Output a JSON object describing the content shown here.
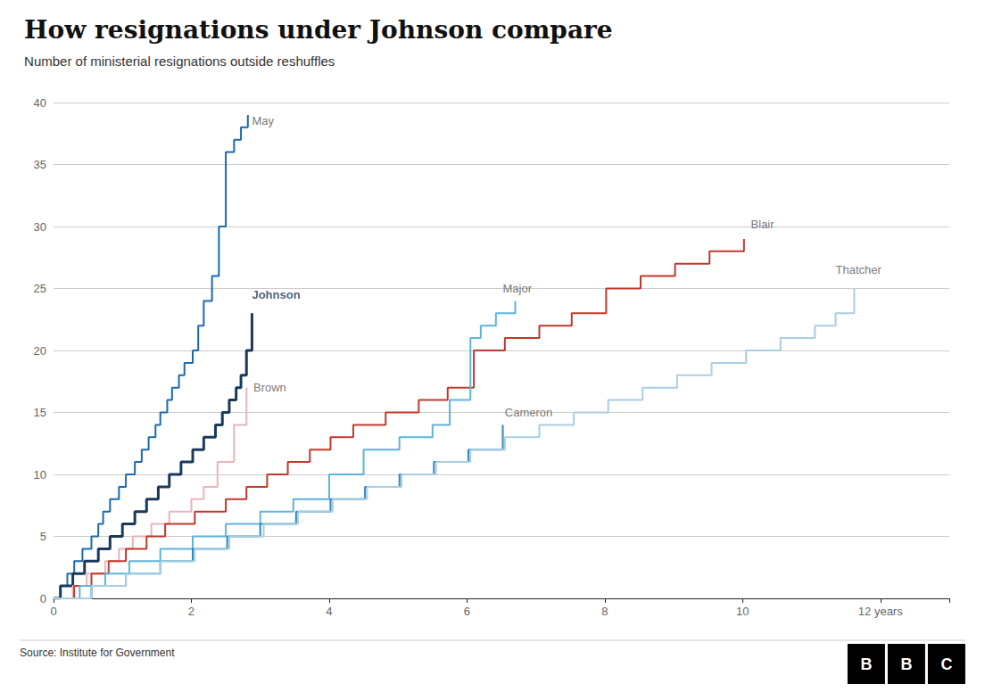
{
  "chart_data": {
    "type": "step",
    "title": "How resignations under Johnson compare",
    "subtitle": "Number of ministerial resignations outside reshuffles",
    "source": "Source: Institute for Government",
    "logo": "BBC",
    "xlim": [
      0,
      13.0
    ],
    "ylim": [
      0,
      40
    ],
    "xticks": [
      0,
      2,
      4,
      6,
      8,
      10,
      {
        "value": 12,
        "label": "12 years"
      }
    ],
    "yticks": [
      0,
      5,
      10,
      15,
      20,
      25,
      30,
      35,
      40
    ],
    "grid": true,
    "series": [
      {
        "name": "May",
        "color": "#1a6ab0",
        "x": [
          0,
          0.1,
          0.2,
          0.3,
          0.42,
          0.55,
          0.65,
          0.72,
          0.82,
          0.95,
          1.05,
          1.18,
          1.28,
          1.38,
          1.48,
          1.55,
          1.65,
          1.72,
          1.82,
          1.9,
          2.02,
          2.1,
          2.18,
          2.3,
          2.4,
          2.5,
          2.62,
          2.72,
          2.82
        ],
        "values": [
          0,
          1,
          2,
          3,
          4,
          5,
          6,
          7,
          8,
          9,
          10,
          11,
          12,
          13,
          14,
          15,
          16,
          17,
          18,
          19,
          20,
          22,
          24,
          26,
          30,
          36,
          37,
          38,
          39
        ]
      },
      {
        "name": "Johnson",
        "color": "#1a3a5c",
        "x": [
          0,
          0.1,
          0.28,
          0.45,
          0.65,
          0.82,
          1.0,
          1.18,
          1.35,
          1.52,
          1.68,
          1.85,
          2.02,
          2.18,
          2.35,
          2.45,
          2.55,
          2.65,
          2.72,
          2.8,
          2.88
        ],
        "values": [
          0,
          1,
          2,
          3,
          4,
          5,
          6,
          7,
          8,
          9,
          10,
          11,
          12,
          13,
          14,
          15,
          16,
          17,
          18,
          20,
          23
        ]
      },
      {
        "name": "Brown",
        "color": "#e8b4bb",
        "x": [
          0,
          0.28,
          0.48,
          0.75,
          0.95,
          1.15,
          1.42,
          1.68,
          2.0,
          2.18,
          2.38,
          2.62,
          2.8
        ],
        "values": [
          0,
          1,
          2,
          3,
          4,
          5,
          6,
          7,
          8,
          9,
          11,
          14,
          17
        ]
      },
      {
        "name": "Blair",
        "color": "#c0392b",
        "x": [
          0,
          0.3,
          0.55,
          0.8,
          1.05,
          1.35,
          1.62,
          2.05,
          2.5,
          2.8,
          3.1,
          3.4,
          3.72,
          4.02,
          4.35,
          4.82,
          5.3,
          5.72,
          6.1,
          6.55,
          7.05,
          7.52,
          8.02,
          8.52,
          9.02,
          9.52,
          10.02
        ],
        "values": [
          0,
          1,
          2,
          3,
          4,
          5,
          6,
          7,
          8,
          9,
          10,
          11,
          12,
          13,
          14,
          15,
          16,
          17,
          20,
          21,
          22,
          23,
          25,
          26,
          27,
          28,
          29
        ]
      },
      {
        "name": "Major",
        "color": "#5db4d8",
        "x": [
          0,
          0.38,
          0.75,
          1.1,
          1.55,
          2.02,
          2.5,
          3.0,
          3.48,
          4.0,
          4.5,
          5.02,
          5.5,
          5.75,
          6.05,
          6.2,
          6.42,
          6.7
        ],
        "values": [
          0,
          1,
          2,
          3,
          4,
          5,
          6,
          7,
          8,
          10,
          12,
          13,
          14,
          16,
          21,
          22,
          23,
          24
        ]
      },
      {
        "name": "Cameron",
        "color": "#2e86c1",
        "x": [
          0,
          0.55,
          1.05,
          1.55,
          2.02,
          2.52,
          3.0,
          3.52,
          4.02,
          4.52,
          5.02,
          5.52,
          6.02,
          6.52
        ],
        "values": [
          0,
          1,
          2,
          3,
          4,
          5,
          6,
          7,
          8,
          9,
          10,
          11,
          12,
          14
        ]
      },
      {
        "name": "Thatcher",
        "color": "#a8cfe0",
        "x": [
          0,
          0.55,
          1.05,
          1.55,
          2.05,
          2.55,
          3.05,
          3.55,
          4.05,
          4.55,
          5.05,
          5.55,
          6.05,
          6.55,
          7.05,
          7.55,
          8.05,
          8.55,
          9.05,
          9.55,
          10.05,
          10.55,
          11.05,
          11.35,
          11.62
        ],
        "values": [
          0,
          1,
          2,
          3,
          4,
          5,
          6,
          7,
          8,
          9,
          10,
          11,
          12,
          13,
          14,
          15,
          16,
          17,
          18,
          19,
          20,
          21,
          22,
          23,
          25
        ]
      }
    ],
    "annotations": [
      {
        "text": "May",
        "x": 2.88,
        "y": 38.5,
        "color": "#555555",
        "bold": false
      },
      {
        "text": "Johnson",
        "x": 2.88,
        "y": 24.5,
        "color": "#1a3a5c",
        "bold": true
      },
      {
        "text": "Brown",
        "x": 2.9,
        "y": 17.0,
        "color": "#555555",
        "bold": false
      },
      {
        "text": "Blair",
        "x": 10.12,
        "y": 30.2,
        "color": "#555555",
        "bold": false
      },
      {
        "text": "Major",
        "x": 6.52,
        "y": 25.0,
        "color": "#555555",
        "bold": false
      },
      {
        "text": "Cameron",
        "x": 6.55,
        "y": 15.0,
        "color": "#555555",
        "bold": false
      },
      {
        "text": "Thatcher",
        "x": 11.35,
        "y": 26.5,
        "color": "#555555",
        "bold": false
      }
    ]
  }
}
